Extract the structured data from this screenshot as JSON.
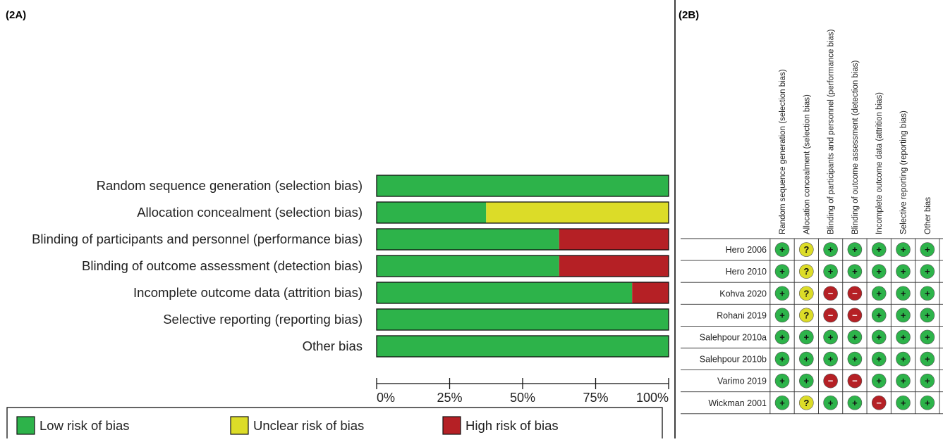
{
  "colors": {
    "low": "#2db34a",
    "unclear": "#dcdc28",
    "high": "#b52025"
  },
  "chart_data": [
    {
      "panel_label": "(2A)",
      "type": "bar",
      "orientation": "horizontal",
      "stacked": true,
      "categories": [
        "Random sequence generation (selection bias)",
        "Allocation concealment (selection bias)",
        "Blinding of participants and personnel (performance bias)",
        "Blinding of outcome assessment (detection bias)",
        "Incomplete outcome data (attrition bias)",
        "Selective reporting (reporting bias)",
        "Other bias"
      ],
      "series": [
        {
          "name": "Low risk of bias",
          "color": "#2db34a",
          "values": [
            100,
            37.5,
            62.5,
            62.5,
            87.5,
            100,
            100
          ]
        },
        {
          "name": "Unclear risk of bias",
          "color": "#dcdc28",
          "values": [
            0,
            62.5,
            0,
            0,
            0,
            0,
            0
          ]
        },
        {
          "name": "High risk of bias",
          "color": "#b52025",
          "values": [
            0,
            0,
            37.5,
            37.5,
            12.5,
            0,
            0
          ]
        }
      ],
      "xlim": [
        0,
        100
      ],
      "xticks": [
        "0%",
        "25%",
        "50%",
        "75%",
        "100%"
      ],
      "legend": [
        "Low risk of bias",
        "Unclear risk of bias",
        "High risk of bias"
      ],
      "legend_position": "bottom",
      "grid": false
    },
    {
      "panel_label": "(2B)",
      "type": "table",
      "columns": [
        "Random sequence generation (selection bias)",
        "Allocation concealment (selection bias)",
        "Blinding of participants and personnel (performance bias)",
        "Blinding of outcome assessment (detection bias)",
        "Incomplete outcome data (attrition bias)",
        "Selective reporting (reporting bias)",
        "Other bias"
      ],
      "rows": [
        {
          "study": "Hero 2006",
          "ratings": [
            "low",
            "unclear",
            "low",
            "low",
            "low",
            "low",
            "low"
          ]
        },
        {
          "study": "Hero 2010",
          "ratings": [
            "low",
            "unclear",
            "low",
            "low",
            "low",
            "low",
            "low"
          ]
        },
        {
          "study": "Kohva 2020",
          "ratings": [
            "low",
            "unclear",
            "high",
            "high",
            "low",
            "low",
            "low"
          ]
        },
        {
          "study": "Rohani 2019",
          "ratings": [
            "low",
            "unclear",
            "high",
            "high",
            "low",
            "low",
            "low"
          ]
        },
        {
          "study": "Salehpour 2010a",
          "ratings": [
            "low",
            "low",
            "low",
            "low",
            "low",
            "low",
            "low"
          ]
        },
        {
          "study": "Salehpour 2010b",
          "ratings": [
            "low",
            "low",
            "low",
            "low",
            "low",
            "low",
            "low"
          ]
        },
        {
          "study": "Varimo 2019",
          "ratings": [
            "low",
            "low",
            "high",
            "high",
            "low",
            "low",
            "low"
          ]
        },
        {
          "study": "Wickman 2001",
          "ratings": [
            "low",
            "unclear",
            "low",
            "low",
            "high",
            "low",
            "low"
          ]
        }
      ],
      "symbols": {
        "low": "+",
        "unclear": "?",
        "high": "−"
      }
    }
  ]
}
